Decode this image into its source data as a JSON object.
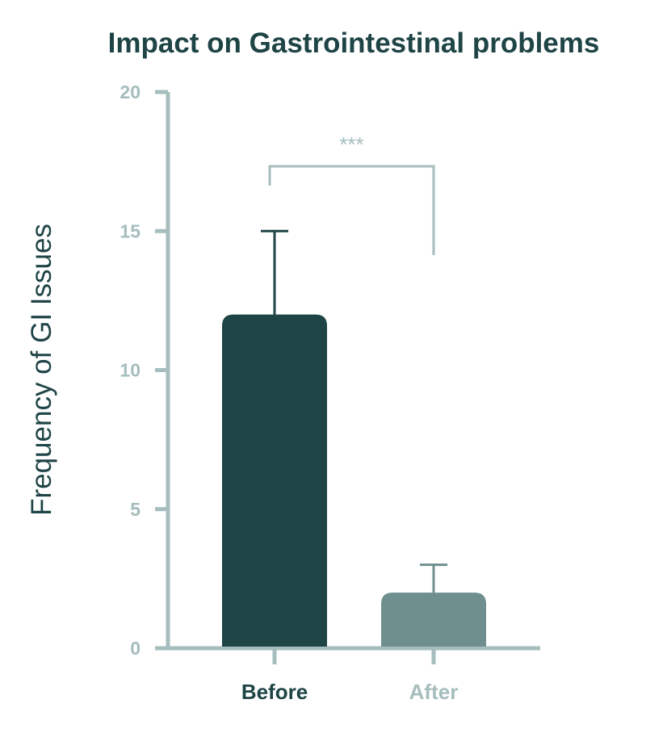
{
  "colors": {
    "title": "#1f4446",
    "axis": "#a6bdbd",
    "before_bar": "#1f4446",
    "after_bar": "#6f8f8f",
    "before_label": "#1f4446",
    "after_label": "#a6bdbd",
    "bracket": "#a6bdbd"
  },
  "chart_data": {
    "type": "bar",
    "title": "Impact on Gastrointestinal problems",
    "xlabel": "",
    "ylabel": "Frequency of GI Issues",
    "ylim": [
      0,
      20
    ],
    "yticks": [
      "0",
      "5",
      "10",
      "15",
      "20"
    ],
    "ytick_values": [
      0,
      5,
      10,
      15,
      20
    ],
    "categories": [
      "Before",
      "After"
    ],
    "values": [
      12,
      2
    ],
    "error_upper": [
      15,
      3
    ],
    "grid": false,
    "legend": "none",
    "annotations": [
      {
        "text": "***",
        "between": [
          "Before",
          "After"
        ]
      }
    ]
  }
}
